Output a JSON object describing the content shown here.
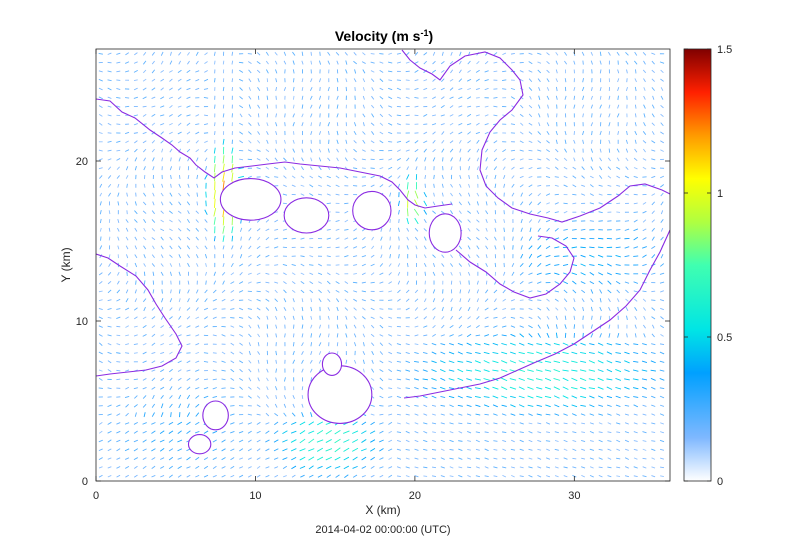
{
  "chart_data": {
    "type": "heatmap",
    "title": "Velocity (m s",
    "title_superscript": "-1",
    "title_suffix": ")",
    "xlabel": "X (km)",
    "ylabel": "Y (km)",
    "xlim": [
      0,
      36
    ],
    "ylim": [
      0,
      27
    ],
    "x_ticks": [
      0,
      10,
      20,
      30
    ],
    "y_ticks": [
      0,
      10,
      20
    ],
    "colorbar": {
      "min": 0,
      "max": 1.5,
      "ticks": [
        0,
        0.5,
        1,
        1.5
      ],
      "tick_labels": [
        "0",
        "0.5",
        "1",
        "1.5"
      ],
      "colormap": "jet-white"
    },
    "grid": false,
    "coastline_color": "#8a2be2",
    "footer": "2014-04-02 00:00:00  (UTC)",
    "islands": [
      {
        "name": "island-a",
        "cx": 9.7,
        "cy": 17.6,
        "rx": 1.9,
        "ry": 1.3
      },
      {
        "name": "island-b",
        "cx": 13.2,
        "cy": 16.6,
        "rx": 1.4,
        "ry": 1.1
      },
      {
        "name": "island-c",
        "cx": 17.3,
        "cy": 16.9,
        "rx": 1.2,
        "ry": 1.2
      },
      {
        "name": "island-d",
        "cx": 21.9,
        "cy": 15.5,
        "rx": 1.0,
        "ry": 1.2
      },
      {
        "name": "island-e",
        "cx": 15.3,
        "cy": 5.4,
        "rx": 2.0,
        "ry": 1.8
      },
      {
        "name": "island-f",
        "cx": 14.8,
        "cy": 7.3,
        "rx": 0.6,
        "ry": 0.7
      },
      {
        "name": "island-g",
        "cx": 7.5,
        "cy": 4.1,
        "rx": 0.8,
        "ry": 0.9
      },
      {
        "name": "island-h",
        "cx": 6.5,
        "cy": 2.3,
        "rx": 0.7,
        "ry": 0.6
      }
    ],
    "velocity_features": [
      {
        "name": "jet-strait-west",
        "x0": 7.5,
        "y0": 15.5,
        "x1": 8.6,
        "y1": 20.5,
        "speed": 1.15
      },
      {
        "name": "jet-strait-mid",
        "x0": 19.6,
        "y0": 16.5,
        "x1": 20.1,
        "y1": 18.5,
        "speed": 0.95
      },
      {
        "name": "southeast-current",
        "x0": 20.0,
        "y0": 4.5,
        "x1": 35.5,
        "y1": 9.0,
        "speed": 0.55
      },
      {
        "name": "southern-band",
        "x0": 11.5,
        "y0": 0.8,
        "x1": 17.5,
        "y1": 4.0,
        "speed": 0.6
      },
      {
        "name": "east-flow",
        "x0": 26.0,
        "y0": 12.0,
        "x1": 35.5,
        "y1": 16.0,
        "speed": 0.35
      },
      {
        "name": "southwest-flow",
        "x0": 0.5,
        "y0": 0.5,
        "x1": 10.0,
        "y1": 6.0,
        "speed": 0.25
      }
    ]
  }
}
